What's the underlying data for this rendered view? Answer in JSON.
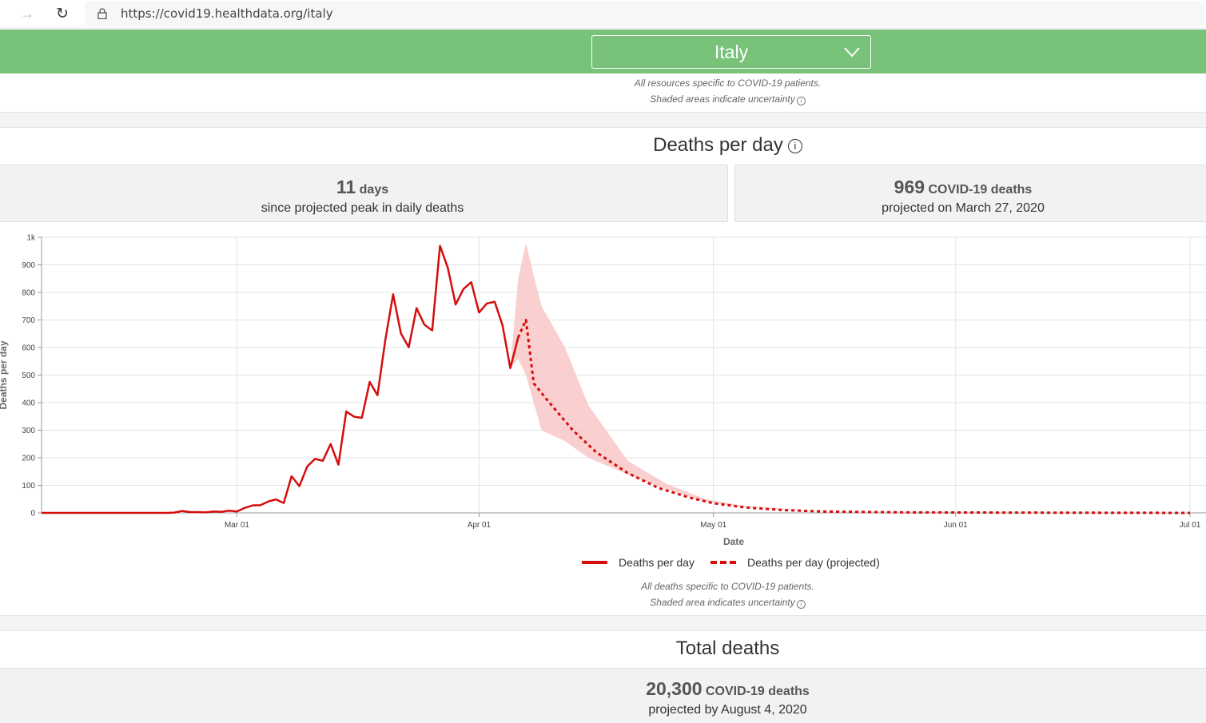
{
  "browser": {
    "url": "https://covid19.healthdata.org/italy",
    "forward_icon": "arrow-right-icon",
    "reload_icon": "reload-icon",
    "lock_icon": "lock-icon"
  },
  "header": {
    "country": "Italy",
    "accent_color": "#78c27a",
    "note_line1": "All resources specific to COVID-19 patients.",
    "note_line2": "Shaded areas indicate uncertainty"
  },
  "deaths_section": {
    "title": "Deaths per day",
    "stat_left": {
      "value": "11",
      "unit": "days",
      "caption": "since projected peak in daily deaths"
    },
    "stat_right": {
      "value": "969",
      "unit": "COVID-19 deaths",
      "caption": "projected on March 27, 2020"
    },
    "note_line1": "All deaths specific to COVID-19 patients.",
    "note_line2": "Shaded area indicates uncertainty"
  },
  "total_section": {
    "title": "Total deaths",
    "value": "20,300",
    "unit": "COVID-19 deaths",
    "caption": "projected by August 4, 2020"
  },
  "chart_data": {
    "type": "line",
    "xlabel": "Date",
    "ylabel": "Deaths per day",
    "ylim": [
      0,
      1000
    ],
    "yticks": [
      0,
      100,
      200,
      300,
      400,
      500,
      600,
      700,
      800,
      900,
      1000
    ],
    "ytick_labels": [
      "0",
      "100",
      "200",
      "300",
      "400",
      "500",
      "600",
      "700",
      "800",
      "900",
      "1k"
    ],
    "xlim": [
      "2020-02-05",
      "2020-07-01"
    ],
    "xticks": [
      {
        "date": "2020-03-01",
        "label": "Mar 01"
      },
      {
        "date": "2020-04-01",
        "label": "Apr 01"
      },
      {
        "date": "2020-05-01",
        "label": "May 01"
      },
      {
        "date": "2020-06-01",
        "label": "Jun 01"
      },
      {
        "date": "2020-07-01",
        "label": "Jul 01"
      }
    ],
    "grid": true,
    "legend_position": "bottom",
    "color": "#d50d0d",
    "band_color": "#f9c7c7",
    "series": [
      {
        "name": "Deaths per day",
        "style": "solid",
        "points": [
          [
            "2020-02-05",
            0
          ],
          [
            "2020-02-21",
            0
          ],
          [
            "2020-02-22",
            1
          ],
          [
            "2020-02-23",
            7
          ],
          [
            "2020-02-24",
            3
          ],
          [
            "2020-02-25",
            3
          ],
          [
            "2020-02-26",
            2
          ],
          [
            "2020-02-27",
            5
          ],
          [
            "2020-02-28",
            4
          ],
          [
            "2020-02-29",
            8
          ],
          [
            "2020-03-01",
            5
          ],
          [
            "2020-03-02",
            18
          ],
          [
            "2020-03-03",
            27
          ],
          [
            "2020-03-04",
            28
          ],
          [
            "2020-03-05",
            41
          ],
          [
            "2020-03-06",
            49
          ],
          [
            "2020-03-07",
            36
          ],
          [
            "2020-03-08",
            133
          ],
          [
            "2020-03-09",
            97
          ],
          [
            "2020-03-10",
            168
          ],
          [
            "2020-03-11",
            196
          ],
          [
            "2020-03-12",
            189
          ],
          [
            "2020-03-13",
            250
          ],
          [
            "2020-03-14",
            175
          ],
          [
            "2020-03-15",
            368
          ],
          [
            "2020-03-16",
            349
          ],
          [
            "2020-03-17",
            345
          ],
          [
            "2020-03-18",
            475
          ],
          [
            "2020-03-19",
            427
          ],
          [
            "2020-03-20",
            627
          ],
          [
            "2020-03-21",
            793
          ],
          [
            "2020-03-22",
            651
          ],
          [
            "2020-03-23",
            601
          ],
          [
            "2020-03-24",
            743
          ],
          [
            "2020-03-25",
            683
          ],
          [
            "2020-03-26",
            662
          ],
          [
            "2020-03-27",
            969
          ],
          [
            "2020-03-28",
            889
          ],
          [
            "2020-03-29",
            756
          ],
          [
            "2020-03-30",
            812
          ],
          [
            "2020-03-31",
            837
          ],
          [
            "2020-04-01",
            727
          ],
          [
            "2020-04-02",
            760
          ],
          [
            "2020-04-03",
            766
          ],
          [
            "2020-04-04",
            681
          ],
          [
            "2020-04-05",
            525
          ],
          [
            "2020-04-06",
            636
          ]
        ]
      },
      {
        "name": "Deaths per day (projected)",
        "style": "dashed",
        "points": [
          [
            "2020-04-06",
            636
          ],
          [
            "2020-04-07",
            700
          ],
          [
            "2020-04-08",
            470
          ],
          [
            "2020-04-10",
            400
          ],
          [
            "2020-04-13",
            300
          ],
          [
            "2020-04-16",
            220
          ],
          [
            "2020-04-20",
            145
          ],
          [
            "2020-04-24",
            90
          ],
          [
            "2020-04-28",
            55
          ],
          [
            "2020-05-01",
            35
          ],
          [
            "2020-05-05",
            20
          ],
          [
            "2020-05-10",
            10
          ],
          [
            "2020-05-15",
            5
          ],
          [
            "2020-05-25",
            2
          ],
          [
            "2020-06-10",
            1
          ],
          [
            "2020-07-01",
            0
          ]
        ]
      }
    ],
    "uncertainty": [
      [
        "2020-04-05",
        525,
        525
      ],
      [
        "2020-04-06",
        560,
        850
      ],
      [
        "2020-04-07",
        500,
        980
      ],
      [
        "2020-04-08",
        400,
        860
      ],
      [
        "2020-04-09",
        300,
        750
      ],
      [
        "2020-04-12",
        260,
        600
      ],
      [
        "2020-04-15",
        200,
        390
      ],
      [
        "2020-04-20",
        140,
        190
      ],
      [
        "2020-04-25",
        85,
        105
      ],
      [
        "2020-04-30",
        40,
        50
      ],
      [
        "2020-05-05",
        20,
        25
      ],
      [
        "2020-05-15",
        5,
        7
      ],
      [
        "2020-06-01",
        1,
        2
      ],
      [
        "2020-07-01",
        0,
        1
      ]
    ]
  }
}
